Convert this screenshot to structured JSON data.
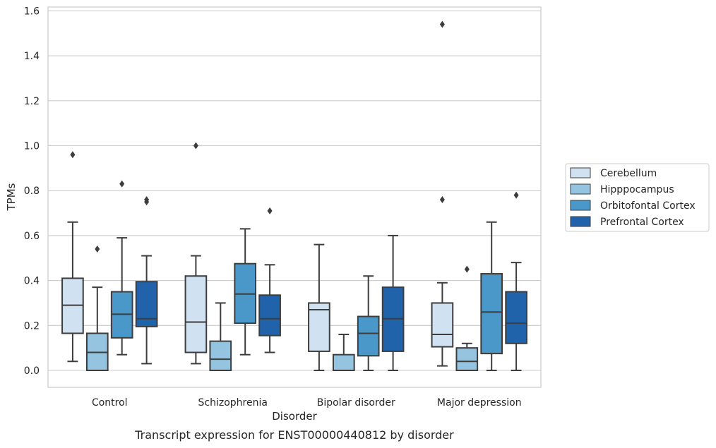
{
  "chart_data": {
    "type": "box",
    "caption": "Transcript expression for ENST00000440812 by disorder",
    "xlabel": "Disorder",
    "ylabel": "TPMs",
    "ylim": [
      -0.075,
      1.62
    ],
    "yticks": [
      0.0,
      0.2,
      0.4,
      0.6,
      0.8,
      1.0,
      1.2,
      1.4,
      1.6
    ],
    "ytick_labels": [
      "0.0",
      "0.2",
      "0.4",
      "0.6",
      "0.8",
      "1.0",
      "1.2",
      "1.4",
      "1.6"
    ],
    "grid": "horizontal",
    "legend_position": "right",
    "categories": [
      "Control",
      "Schizophrenia",
      "Bipolar disorder",
      "Major depression"
    ],
    "series": [
      {
        "name": "Cerebellum",
        "color": "#d0e1f2",
        "boxes": [
          {
            "whisker_low": 0.04,
            "q1": 0.165,
            "median": 0.29,
            "q3": 0.41,
            "whisker_high": 0.66,
            "outliers": [
              0.96
            ]
          },
          {
            "whisker_low": 0.03,
            "q1": 0.08,
            "median": 0.215,
            "q3": 0.42,
            "whisker_high": 0.51,
            "outliers": [
              1.0
            ]
          },
          {
            "whisker_low": 0.0,
            "q1": 0.085,
            "median": 0.27,
            "q3": 0.3,
            "whisker_high": 0.56,
            "outliers": []
          },
          {
            "whisker_low": 0.02,
            "q1": 0.105,
            "median": 0.16,
            "q3": 0.3,
            "whisker_high": 0.39,
            "outliers": [
              0.76,
              1.54
            ]
          }
        ]
      },
      {
        "name": "Hipppocampus",
        "color": "#94c4df",
        "boxes": [
          {
            "whisker_low": 0.0,
            "q1": 0.0,
            "median": 0.08,
            "q3": 0.165,
            "whisker_high": 0.37,
            "outliers": [
              0.54
            ]
          },
          {
            "whisker_low": 0.0,
            "q1": 0.0,
            "median": 0.05,
            "q3": 0.13,
            "whisker_high": 0.3,
            "outliers": []
          },
          {
            "whisker_low": 0.0,
            "q1": 0.0,
            "median": 0.0,
            "q3": 0.07,
            "whisker_high": 0.16,
            "outliers": []
          },
          {
            "whisker_low": 0.0,
            "q1": 0.0,
            "median": 0.04,
            "q3": 0.1,
            "whisker_high": 0.12,
            "outliers": [
              0.45
            ]
          }
        ]
      },
      {
        "name": "Orbitofontal Cortex",
        "color": "#4a98c9",
        "boxes": [
          {
            "whisker_low": 0.07,
            "q1": 0.145,
            "median": 0.25,
            "q3": 0.35,
            "whisker_high": 0.59,
            "outliers": [
              0.83
            ]
          },
          {
            "whisker_low": 0.07,
            "q1": 0.21,
            "median": 0.34,
            "q3": 0.475,
            "whisker_high": 0.63,
            "outliers": []
          },
          {
            "whisker_low": 0.0,
            "q1": 0.065,
            "median": 0.165,
            "q3": 0.24,
            "whisker_high": 0.42,
            "outliers": []
          },
          {
            "whisker_low": 0.0,
            "q1": 0.075,
            "median": 0.26,
            "q3": 0.43,
            "whisker_high": 0.66,
            "outliers": []
          }
        ]
      },
      {
        "name": "Prefrontal Cortex",
        "color": "#2163aa",
        "boxes": [
          {
            "whisker_low": 0.03,
            "q1": 0.195,
            "median": 0.23,
            "q3": 0.395,
            "whisker_high": 0.51,
            "outliers": [
              0.75,
              0.76
            ]
          },
          {
            "whisker_low": 0.08,
            "q1": 0.155,
            "median": 0.23,
            "q3": 0.335,
            "whisker_high": 0.47,
            "outliers": [
              0.71
            ]
          },
          {
            "whisker_low": 0.0,
            "q1": 0.085,
            "median": 0.23,
            "q3": 0.37,
            "whisker_high": 0.6,
            "outliers": []
          },
          {
            "whisker_low": 0.0,
            "q1": 0.12,
            "median": 0.21,
            "q3": 0.35,
            "whisker_high": 0.48,
            "outliers": [
              0.78
            ]
          }
        ]
      }
    ]
  }
}
